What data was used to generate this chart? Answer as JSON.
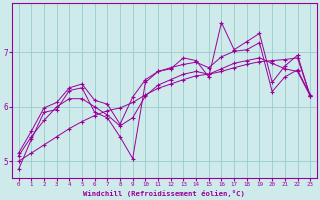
{
  "xlabel": "Windchill (Refroidissement éolien,°C)",
  "xlim": [
    -0.5,
    23.5
  ],
  "ylim": [
    4.7,
    7.9
  ],
  "yticks": [
    5,
    6,
    7
  ],
  "xticks": [
    0,
    1,
    2,
    3,
    4,
    5,
    6,
    7,
    8,
    9,
    10,
    11,
    12,
    13,
    14,
    15,
    16,
    17,
    18,
    19,
    20,
    21,
    22,
    23
  ],
  "bg_color": "#ceeaea",
  "line_color": "#990099",
  "grid_color": "#99cccc",
  "series": {
    "volatile": [
      4.85,
      5.4,
      5.9,
      5.95,
      6.3,
      6.35,
      5.9,
      5.8,
      5.45,
      5.05,
      6.45,
      6.65,
      6.7,
      6.9,
      6.85,
      6.55,
      7.55,
      7.05,
      7.2,
      7.35,
      6.45,
      6.75,
      6.95,
      6.2
    ],
    "smooth": [
      5.1,
      5.45,
      5.75,
      6.0,
      6.15,
      6.15,
      6.0,
      5.85,
      5.65,
      5.8,
      6.2,
      6.4,
      6.5,
      6.6,
      6.65,
      6.6,
      6.7,
      6.8,
      6.85,
      6.9,
      6.8,
      6.7,
      6.65,
      6.2
    ],
    "upper": [
      5.15,
      5.55,
      5.98,
      6.08,
      6.35,
      6.42,
      6.12,
      6.05,
      5.68,
      6.18,
      6.5,
      6.65,
      6.72,
      6.78,
      6.82,
      6.72,
      6.92,
      7.02,
      7.05,
      7.18,
      6.28,
      6.55,
      6.68,
      6.22
    ],
    "trend": [
      5.0,
      5.15,
      5.3,
      5.45,
      5.6,
      5.73,
      5.84,
      5.93,
      5.98,
      6.08,
      6.22,
      6.34,
      6.42,
      6.5,
      6.57,
      6.6,
      6.65,
      6.72,
      6.78,
      6.83,
      6.85,
      6.87,
      6.9,
      6.2
    ]
  }
}
